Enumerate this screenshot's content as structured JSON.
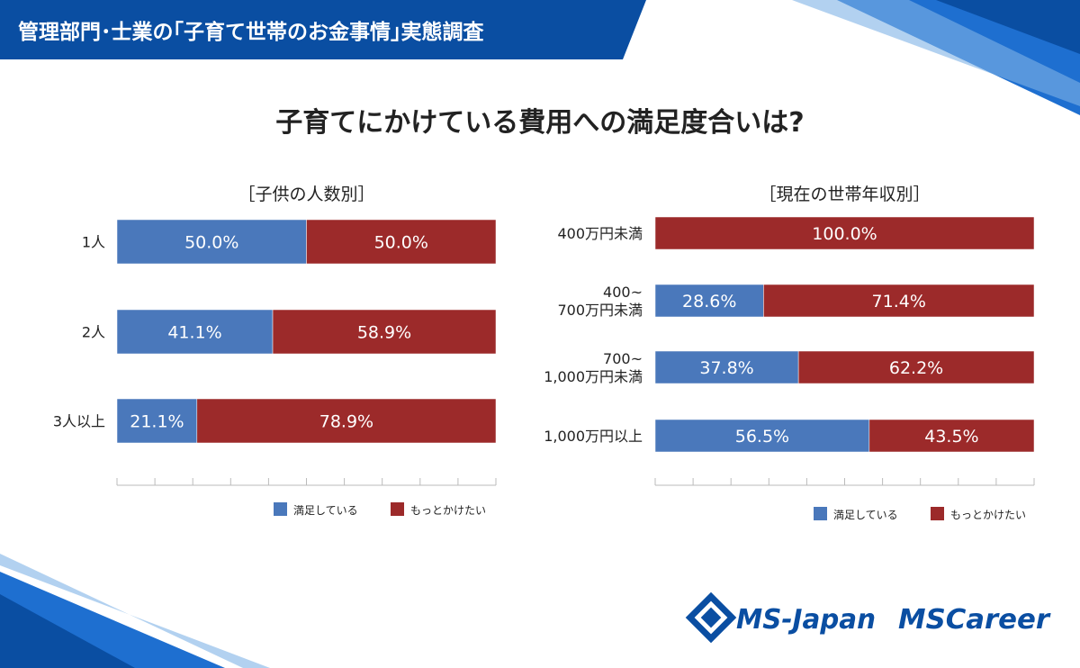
{
  "header": {
    "title": "管理部門･士業の｢子育て世帯のお金事情｣実態調査"
  },
  "main_title": "子育てにかけている費用への満足度合いは?",
  "colors": {
    "satisfied": "#4a78bb",
    "want_more": "#9c2a2a",
    "header_bg": "#0a4ea2",
    "text": "#222222"
  },
  "chart_data": [
    {
      "type": "bar",
      "orientation": "horizontal-stacked",
      "title": "［子供の人数別］",
      "categories": [
        "1人",
        "2人",
        "3人以上"
      ],
      "series": [
        {
          "name": "満足している",
          "values": [
            50.0,
            41.1,
            21.1
          ],
          "labels": [
            "50.0%",
            "41.1%",
            "21.1%"
          ]
        },
        {
          "name": "もっとかけたい",
          "values": [
            50.0,
            58.9,
            78.9
          ],
          "labels": [
            "50.0%",
            "58.9%",
            "78.9%"
          ]
        }
      ],
      "xlim": [
        0,
        100
      ],
      "legend": "bottom"
    },
    {
      "type": "bar",
      "orientation": "horizontal-stacked",
      "title": "［現在の世帯年収別］",
      "categories": [
        "400万円未満",
        "400~\n700万円未満",
        "700~\n1,000万円未満",
        "1,000万円以上"
      ],
      "series": [
        {
          "name": "満足している",
          "values": [
            0,
            28.6,
            37.8,
            56.5
          ],
          "labels": [
            "",
            "28.6%",
            "37.8%",
            "56.5%"
          ]
        },
        {
          "name": "もっとかけたい",
          "values": [
            100.0,
            71.4,
            62.2,
            43.5
          ],
          "labels": [
            "100.0%",
            "71.4%",
            "62.2%",
            "43.5%"
          ]
        }
      ],
      "xlim": [
        0,
        100
      ],
      "legend": "bottom"
    }
  ],
  "logos": {
    "ms_japan": "MS-Japan",
    "ms_career": "MSCareer"
  }
}
